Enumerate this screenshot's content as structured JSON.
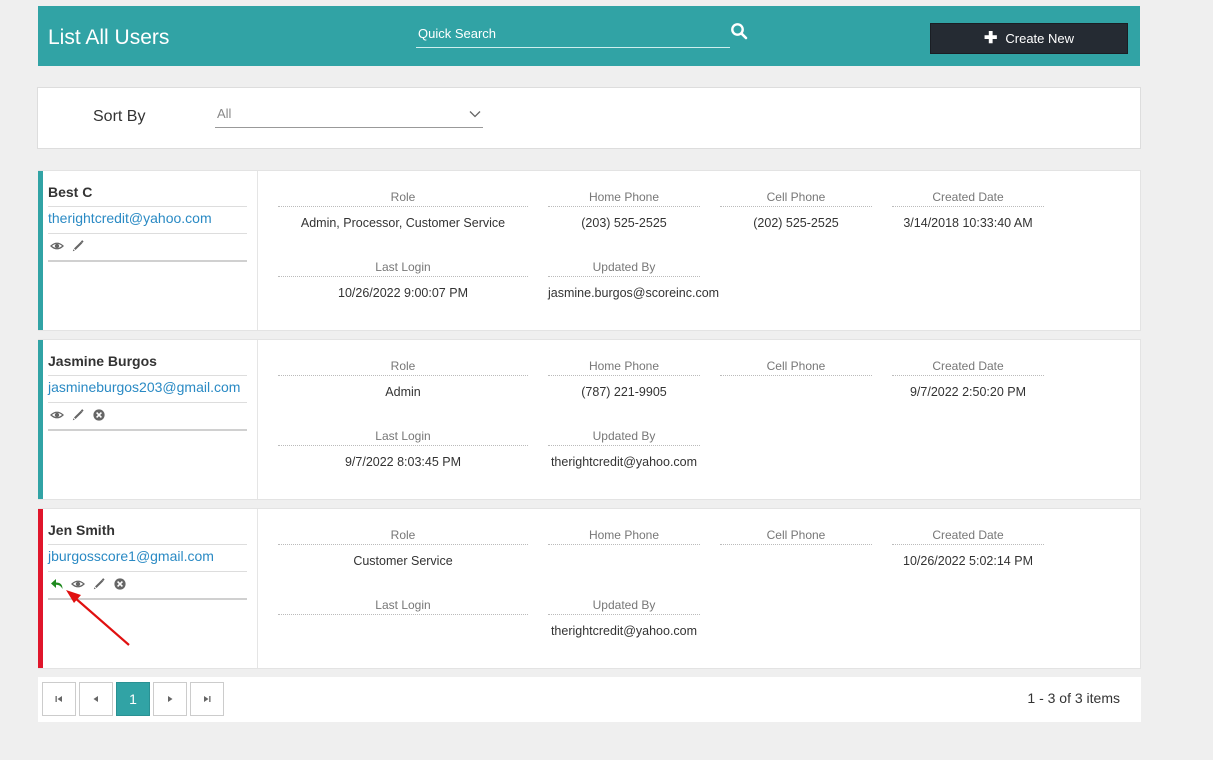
{
  "header": {
    "title": "List All Users",
    "search_placeholder": "Quick Search",
    "create_label": "Create New"
  },
  "sort": {
    "label": "Sort By",
    "value": "All"
  },
  "field_labels": {
    "role": "Role",
    "home_phone": "Home Phone",
    "cell_phone": "Cell Phone",
    "created_date": "Created Date",
    "last_login": "Last Login",
    "updated_by": "Updated By"
  },
  "users": [
    {
      "name": "Best C",
      "email": "therightcredit@yahoo.com",
      "role": "Admin, Processor, Customer Service",
      "home_phone": "(203) 525-2525",
      "cell_phone": "(202) 525-2525",
      "created_date": "3/14/2018 10:33:40 AM",
      "last_login": "10/26/2022 9:00:07 PM",
      "updated_by": "jasmine.burgos@scoreinc.com",
      "status_color": "#31a3a5",
      "actions": [
        "view-icon",
        "edit-icon"
      ]
    },
    {
      "name": "Jasmine Burgos",
      "email": "jasmineburgos203@gmail.com",
      "role": "Admin",
      "home_phone": "(787) 221-9905",
      "cell_phone": "",
      "created_date": "9/7/2022 2:50:20 PM",
      "last_login": "9/7/2022 8:03:45 PM",
      "updated_by": "therightcredit@yahoo.com",
      "status_color": "#31a3a5",
      "actions": [
        "view-icon",
        "edit-icon",
        "delete-icon"
      ]
    },
    {
      "name": "Jen Smith",
      "email": "jburgosscore1@gmail.com",
      "role": "Customer Service",
      "home_phone": "",
      "cell_phone": "",
      "created_date": "10/26/2022 5:02:14 PM",
      "last_login": "",
      "updated_by": "therightcredit@yahoo.com",
      "status_color": "#e0162b",
      "actions": [
        "restore-icon",
        "view-icon",
        "edit-icon",
        "delete-icon"
      ]
    }
  ],
  "pagination": {
    "current_page": "1",
    "info": "1 - 3 of 3 items"
  },
  "colors": {
    "accent": "#31a3a5",
    "dark_button": "#252b33",
    "inactive": "#e0162b",
    "restore_green": "#1f8a1f",
    "annotation_arrow": "#e01010"
  }
}
